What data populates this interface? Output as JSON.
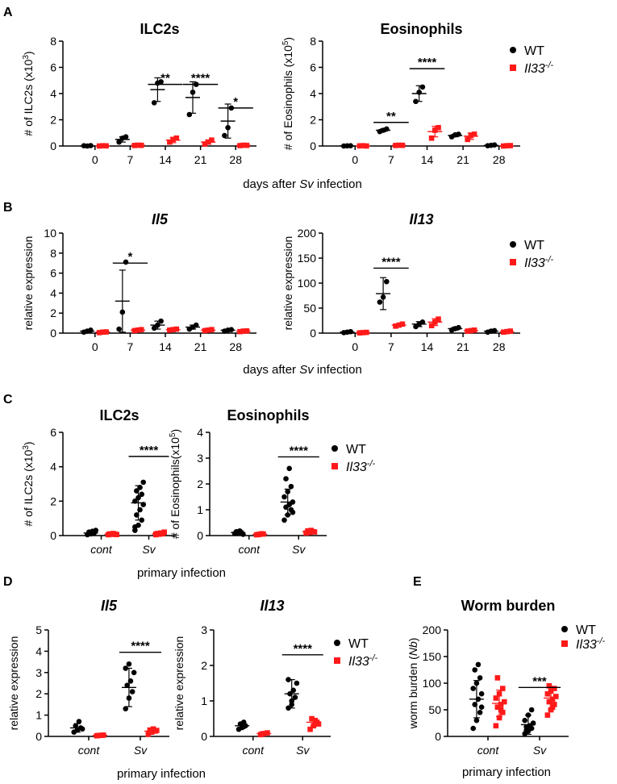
{
  "panels": [
    {
      "letter": "A"
    },
    {
      "letter": "B"
    },
    {
      "letter": "C"
    },
    {
      "letter": "D"
    },
    {
      "letter": "E"
    }
  ],
  "legend": {
    "wt": "WT",
    "ko": "Il33",
    "ko_sup": "-/-"
  },
  "shared_labels": {
    "days_prefix": "days after ",
    "days_italic": "Sv",
    "days_suffix": " infection",
    "primary_infection": "primary infection"
  },
  "colors": {
    "wt": "#000000",
    "ko": "#ff1a1a",
    "axis": "#000000"
  },
  "chart_data": [
    {
      "id": "a1",
      "type": "scatter",
      "title": "ILC2s",
      "title_italic": false,
      "ylabel": "# of ILC2s (x10",
      "ylabel_sup": "3",
      "ylabel_tail": ")",
      "ylabel_italic_part": "",
      "ylim": [
        0,
        8
      ],
      "yticks": [
        0,
        2,
        4,
        6,
        8
      ],
      "categories": [
        "0",
        "7",
        "14",
        "21",
        "28"
      ],
      "cat_italic": false,
      "series": [
        {
          "name": "WT",
          "mean": [
            0.0,
            0.5,
            4.3,
            3.7,
            1.9
          ],
          "sd": [
            0.05,
            0.2,
            0.9,
            1.2,
            1.3
          ],
          "points": [
            [
              0.02,
              0.0,
              0.03
            ],
            [
              0.3,
              0.6,
              0.7
            ],
            [
              3.3,
              4.8,
              4.9
            ],
            [
              2.4,
              4.1,
              4.7
            ],
            [
              0.8,
              1.4,
              2.9
            ]
          ]
        },
        {
          "name": "Il33-/-",
          "mean": [
            0.0,
            0.05,
            0.45,
            0.3,
            0.05
          ],
          "sd": [
            0.02,
            0.03,
            0.2,
            0.15,
            0.03
          ],
          "points": [
            [
              0.0,
              0.02,
              0.01
            ],
            [
              0.04,
              0.06,
              0.05
            ],
            [
              0.3,
              0.5,
              0.6
            ],
            [
              0.15,
              0.3,
              0.45
            ],
            [
              0.03,
              0.06,
              0.05
            ]
          ]
        }
      ],
      "significance": [
        {
          "group": 2,
          "label": "**",
          "y": 4.7
        },
        {
          "group": 3,
          "label": "****",
          "y": 4.7
        },
        {
          "group": 4,
          "label": "*",
          "y": 2.9
        }
      ]
    },
    {
      "id": "a2",
      "type": "scatter",
      "title": "Eosinophils",
      "title_italic": false,
      "ylabel": "# of Eosinophils (x10",
      "ylabel_sup": "5",
      "ylabel_tail": ")",
      "ylabel_italic_part": "",
      "ylim": [
        0,
        8
      ],
      "yticks": [
        0,
        2,
        4,
        6,
        8
      ],
      "categories": [
        "0",
        "7",
        "14",
        "21",
        "28"
      ],
      "cat_italic": false,
      "series": [
        {
          "name": "WT",
          "mean": [
            0.0,
            1.2,
            4.0,
            0.8,
            0.05
          ],
          "sd": [
            0.02,
            0.1,
            0.6,
            0.1,
            0.03
          ],
          "points": [
            [
              0.0,
              0.01,
              0.02
            ],
            [
              1.1,
              1.2,
              1.3
            ],
            [
              3.4,
              4.1,
              4.5
            ],
            [
              0.7,
              0.85,
              0.9
            ],
            [
              0.02,
              0.05,
              0.08
            ]
          ]
        },
        {
          "name": "Il33-/-",
          "mean": [
            0.0,
            0.05,
            1.1,
            0.75,
            0.02
          ],
          "sd": [
            0.02,
            0.02,
            0.4,
            0.25,
            0.01
          ],
          "points": [
            [
              0.01,
              0.02,
              0.0
            ],
            [
              0.04,
              0.06,
              0.05
            ],
            [
              0.6,
              1.2,
              1.4
            ],
            [
              0.5,
              0.8,
              0.9
            ],
            [
              0.0,
              0.02,
              0.03
            ]
          ]
        }
      ],
      "significance": [
        {
          "group": 1,
          "label": "**",
          "y": 1.8
        },
        {
          "group": 2,
          "label": "****",
          "y": 5.9
        }
      ]
    },
    {
      "id": "b1",
      "type": "scatter",
      "title": "Il5",
      "title_italic": true,
      "ylabel": "relative expression",
      "ylabel_sup": "",
      "ylabel_tail": "",
      "ylabel_italic_part": "",
      "ylim": [
        0,
        10
      ],
      "yticks": [
        0,
        2,
        4,
        6,
        8,
        10
      ],
      "categories": [
        "0",
        "7",
        "14",
        "21",
        "28"
      ],
      "cat_italic": false,
      "series": [
        {
          "name": "WT",
          "mean": [
            0.2,
            3.2,
            0.8,
            0.6,
            0.3
          ],
          "sd": [
            0.1,
            3.1,
            0.4,
            0.2,
            0.1
          ],
          "points": [
            [
              0.1,
              0.2,
              0.3
            ],
            [
              0.4,
              2.1,
              7.1
            ],
            [
              0.5,
              0.8,
              1.2
            ],
            [
              0.4,
              0.6,
              0.8
            ],
            [
              0.2,
              0.3,
              0.35
            ]
          ]
        },
        {
          "name": "Il33-/-",
          "mean": [
            0.1,
            0.3,
            0.35,
            0.3,
            0.2
          ],
          "sd": [
            0.05,
            0.1,
            0.1,
            0.1,
            0.05
          ],
          "points": [
            [
              0.05,
              0.1,
              0.12
            ],
            [
              0.25,
              0.3,
              0.35
            ],
            [
              0.3,
              0.35,
              0.4
            ],
            [
              0.25,
              0.3,
              0.35
            ],
            [
              0.15,
              0.2,
              0.22
            ]
          ]
        }
      ],
      "significance": [
        {
          "group": 1,
          "label": "*",
          "y": 7.0
        }
      ]
    },
    {
      "id": "b2",
      "type": "scatter",
      "title": "Il13",
      "title_italic": true,
      "ylabel": "relative expression",
      "ylabel_sup": "",
      "ylabel_tail": "",
      "ylabel_italic_part": "",
      "ylim": [
        0,
        200
      ],
      "yticks": [
        0,
        50,
        100,
        150,
        200
      ],
      "categories": [
        "0",
        "7",
        "14",
        "21",
        "28"
      ],
      "cat_italic": false,
      "series": [
        {
          "name": "WT",
          "mean": [
            2,
            79,
            18,
            9,
            4
          ],
          "sd": [
            1,
            32,
            5,
            3,
            2
          ],
          "points": [
            [
              1,
              2,
              3
            ],
            [
              62,
              72,
              103
            ],
            [
              13,
              18,
              22
            ],
            [
              6,
              9,
              11
            ],
            [
              2,
              4,
              5
            ]
          ]
        },
        {
          "name": "Il33-/-",
          "mean": [
            1,
            16,
            22,
            5,
            3
          ],
          "sd": [
            0.5,
            2,
            7,
            1.5,
            1
          ],
          "points": [
            [
              0.5,
              1,
              1.5
            ],
            [
              14,
              16,
              18
            ],
            [
              15,
              22,
              28
            ],
            [
              4,
              5,
              6
            ],
            [
              2,
              3,
              4
            ]
          ]
        }
      ],
      "significance": [
        {
          "group": 1,
          "label": "****",
          "y": 130
        }
      ]
    },
    {
      "id": "c1",
      "type": "scatter",
      "title": "ILC2s",
      "title_italic": false,
      "ylabel": "# of ILC2s (x10",
      "ylabel_sup": "3",
      "ylabel_tail": ")",
      "ylabel_italic_part": "",
      "ylim": [
        0,
        6
      ],
      "yticks": [
        0,
        2,
        4,
        6
      ],
      "categories": [
        "cont",
        "Sv"
      ],
      "cat_italic": true,
      "series": [
        {
          "name": "WT",
          "mean": [
            0.15,
            1.9
          ],
          "sd": [
            0.1,
            1.0
          ],
          "points": [
            [
              0.05,
              0.1,
              0.15,
              0.2,
              0.25,
              0.3
            ],
            [
              0.3,
              0.6,
              0.9,
              1.2,
              1.5,
              1.8,
              2.0,
              2.2,
              2.4,
              2.6,
              2.8,
              3.1,
              0.5
            ]
          ]
        },
        {
          "name": "Il33-/-",
          "mean": [
            0.08,
            0.1
          ],
          "sd": [
            0.03,
            0.05
          ],
          "points": [
            [
              0.05,
              0.07,
              0.08,
              0.1,
              0.12,
              0.06
            ],
            [
              0.05,
              0.08,
              0.1,
              0.12,
              0.15,
              0.2,
              0.09
            ]
          ]
        }
      ],
      "significance": [
        {
          "group": 1,
          "label": "****",
          "y": 4.6
        }
      ]
    },
    {
      "id": "c2",
      "type": "scatter",
      "title": "Eosinophils",
      "title_italic": false,
      "ylabel": "# of Eosinophils(x10",
      "ylabel_sup": "5",
      "ylabel_tail": ")",
      "ylabel_italic_part": "",
      "ylim": [
        0,
        4
      ],
      "yticks": [
        0,
        1,
        2,
        3,
        4
      ],
      "categories": [
        "cont",
        "Sv"
      ],
      "cat_italic": true,
      "series": [
        {
          "name": "WT",
          "mean": [
            0.12,
            1.3
          ],
          "sd": [
            0.05,
            0.5
          ],
          "points": [
            [
              0.08,
              0.1,
              0.12,
              0.15,
              0.18,
              0.05
            ],
            [
              0.6,
              0.8,
              1.0,
              1.1,
              1.2,
              1.3,
              1.5,
              1.7,
              1.9,
              2.2,
              2.6,
              0.9
            ]
          ]
        },
        {
          "name": "Il33-/-",
          "mean": [
            0.05,
            0.15
          ],
          "sd": [
            0.02,
            0.05
          ],
          "points": [
            [
              0.03,
              0.05,
              0.06,
              0.04,
              0.07
            ],
            [
              0.1,
              0.12,
              0.15,
              0.18,
              0.2,
              0.14
            ]
          ]
        }
      ],
      "significance": [
        {
          "group": 1,
          "label": "****",
          "y": 3.05
        }
      ]
    },
    {
      "id": "d1",
      "type": "scatter",
      "title": "Il5",
      "title_italic": true,
      "ylabel": "relative expression",
      "ylabel_sup": "",
      "ylabel_tail": "",
      "ylabel_italic_part": "",
      "ylim": [
        0,
        5
      ],
      "yticks": [
        0,
        1,
        2,
        3,
        4,
        5
      ],
      "categories": [
        "cont",
        "Sv"
      ],
      "cat_italic": true,
      "series": [
        {
          "name": "WT",
          "mean": [
            0.4,
            2.3
          ],
          "sd": [
            0.2,
            0.9
          ],
          "points": [
            [
              0.2,
              0.3,
              0.4,
              0.5,
              0.7,
              0.35
            ],
            [
              1.3,
              1.8,
              2.1,
              2.4,
              2.6,
              3.0,
              3.2,
              3.4
            ]
          ]
        },
        {
          "name": "Il33-/-",
          "mean": [
            0.05,
            0.25
          ],
          "sd": [
            0.02,
            0.1
          ],
          "points": [
            [
              0.03,
              0.05,
              0.06,
              0.04,
              0.05
            ],
            [
              0.1,
              0.2,
              0.25,
              0.3,
              0.35,
              0.28
            ]
          ]
        }
      ],
      "significance": [
        {
          "group": 1,
          "label": "****",
          "y": 3.95
        }
      ]
    },
    {
      "id": "d2",
      "type": "scatter",
      "title": "Il13",
      "title_italic": true,
      "ylabel": "relative expression",
      "ylabel_sup": "",
      "ylabel_tail": "",
      "ylabel_italic_part": "",
      "ylim": [
        0,
        3
      ],
      "yticks": [
        0,
        1,
        2,
        3
      ],
      "categories": [
        "cont",
        "Sv"
      ],
      "cat_italic": true,
      "series": [
        {
          "name": "WT",
          "mean": [
            0.3,
            1.2
          ],
          "sd": [
            0.08,
            0.4
          ],
          "points": [
            [
              0.2,
              0.25,
              0.3,
              0.35,
              0.4
            ],
            [
              0.8,
              1.0,
              1.1,
              1.2,
              1.3,
              1.5,
              1.6,
              0.9
            ]
          ]
        },
        {
          "name": "Il33-/-",
          "mean": [
            0.08,
            0.4
          ],
          "sd": [
            0.03,
            0.1
          ],
          "points": [
            [
              0.05,
              0.08,
              0.1,
              0.07
            ],
            [
              0.2,
              0.3,
              0.4,
              0.5,
              0.45,
              0.35
            ]
          ]
        }
      ],
      "significance": [
        {
          "group": 1,
          "label": "****",
          "y": 2.3
        }
      ]
    },
    {
      "id": "e1",
      "type": "scatter",
      "title": "Worm burden",
      "title_italic": false,
      "ylabel": "worm burden (",
      "ylabel_sup": "",
      "ylabel_tail": ")",
      "ylabel_italic_part": "Nb",
      "ylim": [
        0,
        200
      ],
      "yticks": [
        0,
        50,
        100,
        150,
        200
      ],
      "categories": [
        "cont",
        "Sv"
      ],
      "cat_italic": true,
      "series": [
        {
          "name": "WT",
          "mean": [
            70,
            22
          ],
          "sd": [
            35,
            18
          ],
          "points": [
            [
              15,
              30,
              45,
              60,
              70,
              80,
              90,
              100,
              110,
              125,
              135,
              55
            ],
            [
              5,
              10,
              15,
              18,
              20,
              25,
              30,
              40,
              50,
              12
            ]
          ]
        },
        {
          "name": "Il33-/-",
          "mean": [
            62,
            72
          ],
          "sd": [
            25,
            22
          ],
          "points": [
            [
              20,
              35,
              45,
              55,
              60,
              65,
              72,
              80,
              90,
              110,
              50
            ],
            [
              40,
              50,
              60,
              65,
              70,
              75,
              80,
              85,
              90,
              95,
              55
            ]
          ]
        }
      ],
      "significance": [
        {
          "group": 1,
          "label": "***",
          "y": 92
        }
      ]
    }
  ]
}
